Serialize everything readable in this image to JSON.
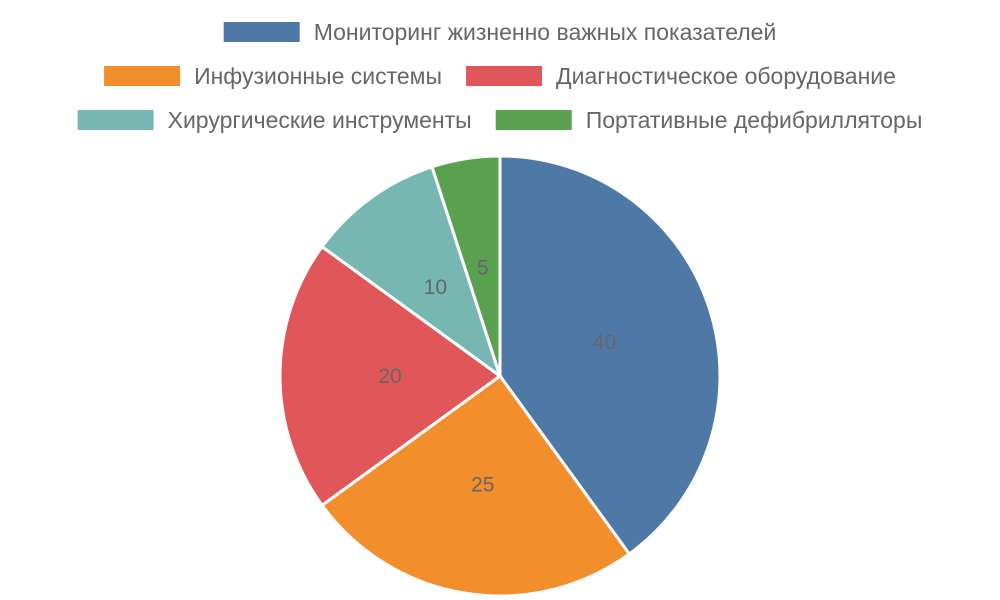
{
  "chart_data": {
    "type": "pie",
    "labels": [
      "Мониторинг жизненно важных показателей",
      "Инфузионные системы",
      "Диагностическое оборудование",
      "Хирургические инструменты",
      "Портативные дефибрилляторы"
    ],
    "values": [
      40,
      25,
      20,
      10,
      5
    ],
    "colors": [
      "#4e79a7",
      "#f28e2b",
      "#e15759",
      "#76b7b2",
      "#59a14f"
    ],
    "legend_position": "top",
    "show_value_labels": true
  }
}
